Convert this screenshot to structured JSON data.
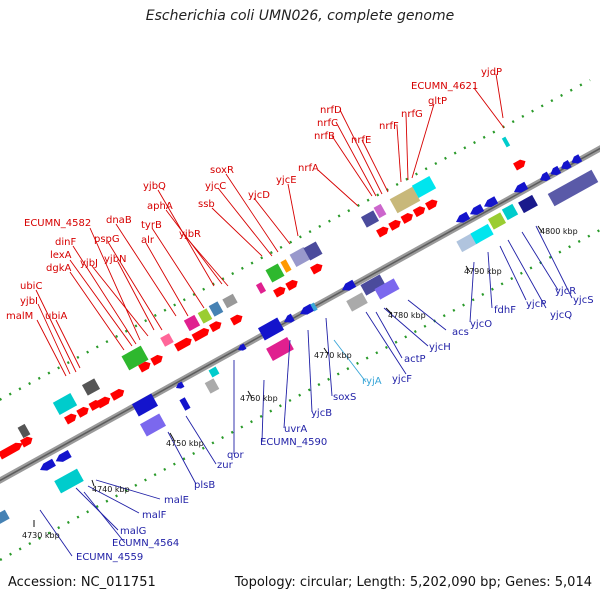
{
  "title": "Escherichia coli UMN026, complete genome",
  "accession": "Accession: NC_011751",
  "summary": "Topology: circular; Length: 5,202,090 bp; Genes: 5,014",
  "ticks": [
    "4730 kbp",
    "4740 kbp",
    "4750 kbp",
    "4760 kbp",
    "4770 kbp",
    "4780 kbp",
    "4790 kbp",
    "4800 kbp"
  ],
  "top_labels": [
    "malM",
    "ubiA",
    "ubiC",
    "yjbI",
    "dgkA",
    "lexA",
    "dinF",
    "ECUMN_4582",
    "yjbJ",
    "yjbN",
    "pspG",
    "dnaB",
    "alr",
    "tyrB",
    "yjbQ",
    "aphA",
    "yjbR",
    "ssb",
    "yjcC",
    "soxR",
    "yjcD",
    "yjcE",
    "nrfA",
    "nrfB",
    "nrfC",
    "nrfD",
    "nrfE",
    "nrfF",
    "nrfG",
    "gltP",
    "ECUMN_4621",
    "yjdP"
  ],
  "bottom_labels": [
    "ECUMN_4559",
    "malG",
    "ECUMN_4564",
    "malF",
    "malE",
    "plsB",
    "zur",
    "qor",
    "ECUMN_4590",
    "uvrA",
    "yjcB",
    "soxS",
    "ryjA",
    "yjcF",
    "actP",
    "yjcH",
    "acs",
    "yjcO",
    "fdhF",
    "yjcP",
    "yjcQ",
    "yjcR",
    "yjcS"
  ],
  "colors": {
    "top_label": "#d60000",
    "bottom_label": "#1f1fa6",
    "rna_label": "#3aa6d8",
    "forward_gene": "#ff0000",
    "reverse_gene": "#1414cc",
    "backbone": "#8c8c8c",
    "gc_dots": "#2a9a2a"
  }
}
